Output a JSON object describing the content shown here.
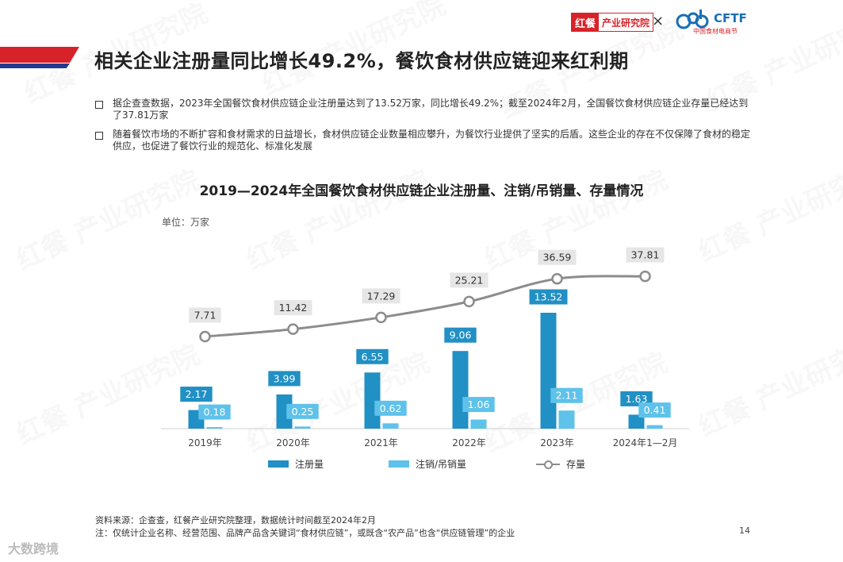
{
  "header": {
    "title": "相关企业注册量同比增长49.2%，餐饮食材供应链迎来红利期",
    "logo_left_a": "红餐",
    "logo_left_b": "产业研究院",
    "logo_x": "×",
    "logo_right_name": "CFTF",
    "logo_right_sub": "中国食材电商节"
  },
  "bullets": [
    "据企查查数据，2023年全国餐饮食材供应链企业注册量达到了13.52万家，同比增长49.2%；截至2024年2月，全国餐饮食材供应链企业存量已经达到了37.81万家",
    "随着餐饮市场的不断扩容和食材需求的日益增长，食材供应链企业数量相应攀升，为餐饮行业提供了坚实的后盾。这些企业的存在不仅保障了食材的稳定供应，也促进了餐饮行业的规范化、标准化发展"
  ],
  "chart_data": {
    "type": "bar",
    "title": "2019—2024年全国餐饮食材供应链企业注册量、注销/吊销量、存量情况",
    "unit_label": "单位：万家",
    "categories": [
      "2019年",
      "2020年",
      "2021年",
      "2022年",
      "2023年",
      "2024年1—2月"
    ],
    "series": [
      {
        "name": "注册量",
        "kind": "bar",
        "color": "#2190c4",
        "values": [
          2.17,
          3.99,
          6.55,
          9.06,
          13.52,
          1.63
        ]
      },
      {
        "name": "注销/吊销量",
        "kind": "bar",
        "color": "#5ec2ea",
        "values": [
          0.18,
          0.25,
          0.62,
          1.06,
          2.11,
          0.41
        ]
      },
      {
        "name": "存量",
        "kind": "line",
        "color": "#8c8c8c",
        "values": [
          7.71,
          11.42,
          17.29,
          25.21,
          36.59,
          37.81
        ]
      }
    ]
  },
  "footer": {
    "source": "资料来源：企查查，红餐产业研究院整理，数据统计时间截至2024年2月",
    "note": "注：仅统计企业名称、经营范围、品牌产品含关键词“食材供应链”，或既含“农产品”也含“供应链管理”的企业",
    "page": "14",
    "watermark_bottom": "大数跨境"
  },
  "watermark_text": "红餐 产业研究院"
}
